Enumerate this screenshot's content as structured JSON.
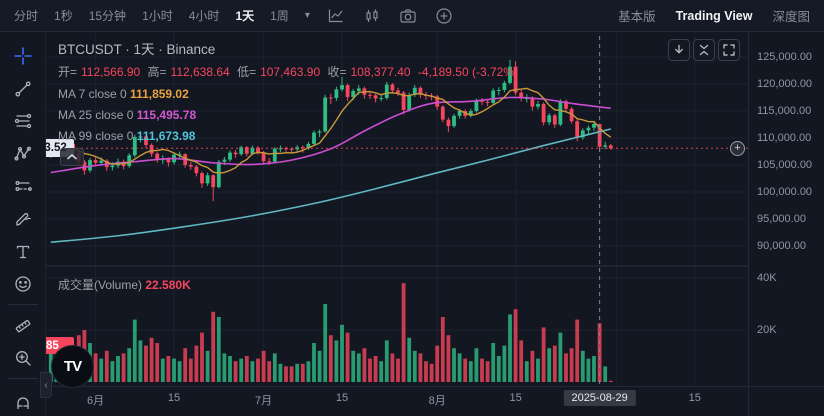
{
  "topbar": {
    "timeframes": [
      "分时",
      "1秒",
      "15分钟",
      "1小时",
      "4小时",
      "1天",
      "1周"
    ],
    "selected_timeframe": "1天",
    "icons": [
      "timeframe-dropdown-caret",
      "chart-style-icon",
      "candles-compare-icon",
      "camera-icon",
      "add-circle-icon"
    ],
    "right_tabs": [
      "基本版",
      "Trading View",
      "深度图"
    ],
    "active_right_tab": "Trading View"
  },
  "toolbar": {
    "tools": [
      "crosshair",
      "trend-line",
      "fib-retracement",
      "xabcd-pattern",
      "forecast",
      "brush",
      "text",
      "emoji",
      "ruler",
      "zoom-in",
      "magnet"
    ],
    "active_tool": "crosshair"
  },
  "legend": {
    "title": "BTCUSDT · 1天 · Binance",
    "ohlc": {
      "o_label": "开=",
      "o": "112,566.90",
      "h_label": "高=",
      "h": "112,638.64",
      "l_label": "低=",
      "l": "107,463.90",
      "c_label": "收=",
      "c": "108,377.40",
      "change": "-4,189.50 (-3.72%)"
    },
    "ma": [
      {
        "label": "MA 7 close 0",
        "value": "111,859.02"
      },
      {
        "label": "MA 25 close 0",
        "value": "115,495.78"
      },
      {
        "label": "MA 99 close 0",
        "value": "111,673.98"
      }
    ]
  },
  "volume_pane": {
    "legend_label": "成交量(Volume)",
    "legend_value": "22.580K",
    "ticks": [
      {
        "label": "40K",
        "v": 40
      },
      {
        "label": "20K",
        "v": 20
      }
    ],
    "last_value_label": "464.285"
  },
  "price_axis": {
    "last_price_label": "108,093.52",
    "add_alert_glyph": "+"
  },
  "time_axis": {
    "crosshair_date": "2025-08-29"
  },
  "chart_buttons": [
    "download-icon",
    "collapse-panes-icon",
    "fullscreen-icon"
  ],
  "colors": {
    "up": "#2ebd85",
    "down": "#f6465d",
    "ma7": "#c89a3a",
    "ma25": "#c94fd0",
    "ma99": "#5fb8c2",
    "grid": "#1d2130",
    "crosshair": "#7a8599",
    "accent_blue": "#3d6bfc"
  },
  "chart_data": {
    "type": "candlestick_with_volume",
    "symbol": "BTCUSDT",
    "interval": "1天",
    "exchange": "Binance",
    "units": "price in thousands USD, volume in thousands",
    "start_date": "2025-05-24",
    "first_open": 107.0,
    "y_ticks": [
      125,
      120,
      115,
      110,
      105,
      100,
      95,
      90
    ],
    "y_tick_labels": [
      "125,000.00",
      "120,000.00",
      "115,000.00",
      "110,000.00",
      "105,000.00",
      "100,000.00",
      "95,000.00",
      "90,000.00"
    ],
    "last_price": 108.09352,
    "last_candle": {
      "open": 112566.9,
      "high": 112638.64,
      "low": 107463.9,
      "close": 108377.4,
      "change": -4189.5,
      "change_pct": -3.72,
      "volume": "22.580K"
    },
    "crosshair_index": 98,
    "x_labels": [
      {
        "text": "6月",
        "i": 8
      },
      {
        "text": "15",
        "i": 22
      },
      {
        "text": "7月",
        "i": 38
      },
      {
        "text": "15",
        "i": 52
      },
      {
        "text": "8月",
        "i": 69
      },
      {
        "text": "15",
        "i": 83
      },
      {
        "text": "15",
        "i": 115
      }
    ],
    "grid_indices": [
      8,
      22,
      38,
      52,
      69,
      83,
      101,
      115
    ],
    "candles_hlcv": [
      [
        107.9,
        106.3,
        107.3,
        12
      ],
      [
        108.3,
        106.9,
        107.8,
        10
      ],
      [
        109.6,
        107.4,
        109.0,
        14
      ],
      [
        109.8,
        108.2,
        108.9,
        9
      ],
      [
        109.1,
        106.7,
        107.2,
        13
      ],
      [
        107.5,
        104.9,
        105.6,
        18
      ],
      [
        105.9,
        103.2,
        104.0,
        20
      ],
      [
        106.3,
        103.6,
        105.9,
        15
      ],
      [
        106.5,
        104.8,
        105.4,
        11
      ],
      [
        106.4,
        104.9,
        105.8,
        9
      ],
      [
        106.1,
        103.9,
        104.6,
        12
      ],
      [
        105.5,
        104.0,
        104.9,
        8
      ],
      [
        106.2,
        104.4,
        105.6,
        10
      ],
      [
        106.0,
        104.2,
        104.8,
        11
      ],
      [
        107.2,
        104.5,
        106.8,
        13
      ],
      [
        110.6,
        106.4,
        110.2,
        24
      ],
      [
        110.9,
        109.2,
        110.3,
        16
      ],
      [
        110.5,
        108.1,
        108.7,
        14
      ],
      [
        109.0,
        106.5,
        107.1,
        17
      ],
      [
        107.4,
        105.4,
        105.9,
        15
      ],
      [
        106.8,
        105.2,
        106.1,
        9
      ],
      [
        106.4,
        104.7,
        105.5,
        10
      ],
      [
        107.3,
        105.1,
        106.9,
        9
      ],
      [
        107.5,
        106.2,
        107.0,
        8
      ],
      [
        107.2,
        104.5,
        105.0,
        13
      ],
      [
        105.6,
        104.1,
        104.7,
        9
      ],
      [
        105.0,
        102.9,
        103.5,
        14
      ],
      [
        103.8,
        100.8,
        101.6,
        19
      ],
      [
        103.6,
        101.1,
        103.1,
        12
      ],
      [
        103.3,
        98.3,
        100.9,
        27
      ],
      [
        105.9,
        100.7,
        105.6,
        25
      ],
      [
        106.5,
        105.0,
        106.0,
        11
      ],
      [
        107.7,
        105.6,
        107.3,
        10
      ],
      [
        107.8,
        106.3,
        107.0,
        8
      ],
      [
        108.6,
        106.7,
        108.3,
        9
      ],
      [
        108.5,
        106.6,
        107.1,
        10
      ],
      [
        108.6,
        106.8,
        108.2,
        8
      ],
      [
        108.5,
        106.9,
        107.3,
        9
      ],
      [
        107.6,
        105.2,
        105.7,
        12
      ],
      [
        106.3,
        105.0,
        105.6,
        8
      ],
      [
        108.3,
        105.3,
        108.0,
        11
      ],
      [
        108.6,
        107.4,
        108.1,
        7
      ],
      [
        108.4,
        107.2,
        108.0,
        6
      ],
      [
        108.3,
        107.1,
        107.9,
        6
      ],
      [
        108.7,
        107.4,
        108.3,
        7
      ],
      [
        108.6,
        107.3,
        108.1,
        7
      ],
      [
        109.3,
        107.8,
        108.9,
        8
      ],
      [
        111.4,
        108.6,
        111.0,
        15
      ],
      [
        111.6,
        110.2,
        111.2,
        12
      ],
      [
        118.0,
        111.0,
        117.5,
        30
      ],
      [
        118.2,
        116.3,
        117.4,
        18
      ],
      [
        119.5,
        116.9,
        119.0,
        16
      ],
      [
        121.3,
        118.6,
        119.8,
        22
      ],
      [
        120.1,
        116.8,
        117.6,
        19
      ],
      [
        119.1,
        117.0,
        118.7,
        12
      ],
      [
        119.8,
        118.0,
        119.2,
        11
      ],
      [
        119.5,
        117.3,
        118.0,
        13
      ],
      [
        118.6,
        117.2,
        117.9,
        9
      ],
      [
        118.2,
        116.6,
        117.3,
        10
      ],
      [
        118.0,
        116.8,
        117.4,
        8
      ],
      [
        120.4,
        117.1,
        119.9,
        16
      ],
      [
        120.2,
        118.3,
        118.8,
        11
      ],
      [
        119.3,
        117.8,
        118.4,
        9
      ],
      [
        118.7,
        114.4,
        115.2,
        38
      ],
      [
        118.4,
        114.9,
        118.0,
        17
      ],
      [
        119.8,
        117.6,
        119.3,
        12
      ],
      [
        119.6,
        117.4,
        118.0,
        11
      ],
      [
        118.5,
        117.1,
        117.8,
        8
      ],
      [
        118.3,
        117.0,
        117.7,
        7
      ],
      [
        118.0,
        115.2,
        115.8,
        14
      ],
      [
        116.1,
        112.9,
        113.4,
        25
      ],
      [
        113.8,
        111.1,
        112.2,
        18
      ],
      [
        114.5,
        111.9,
        114.1,
        13
      ],
      [
        115.4,
        113.6,
        115.0,
        11
      ],
      [
        115.3,
        113.6,
        114.1,
        9
      ],
      [
        115.4,
        113.8,
        115.0,
        8
      ],
      [
        117.3,
        114.7,
        116.9,
        13
      ],
      [
        117.4,
        116.1,
        116.7,
        9
      ],
      [
        117.1,
        115.9,
        116.5,
        8
      ],
      [
        119.2,
        116.3,
        118.8,
        15
      ],
      [
        119.4,
        117.9,
        118.9,
        10
      ],
      [
        120.6,
        118.5,
        120.2,
        14
      ],
      [
        124.5,
        119.9,
        123.2,
        26
      ],
      [
        124.2,
        117.9,
        118.4,
        28
      ],
      [
        118.9,
        116.8,
        117.4,
        16
      ],
      [
        118.1,
        116.6,
        117.4,
        8
      ],
      [
        117.7,
        115.1,
        115.8,
        12
      ],
      [
        116.9,
        115.3,
        116.3,
        9
      ],
      [
        116.6,
        112.3,
        112.9,
        21
      ],
      [
        114.6,
        112.4,
        114.2,
        13
      ],
      [
        114.5,
        111.9,
        112.5,
        14
      ],
      [
        117.2,
        112.2,
        116.8,
        19
      ],
      [
        117.1,
        114.9,
        115.4,
        11
      ],
      [
        115.7,
        112.7,
        113.1,
        13
      ],
      [
        113.4,
        109.4,
        110.1,
        24
      ],
      [
        111.8,
        109.7,
        111.4,
        12
      ],
      [
        112.3,
        110.7,
        111.9,
        9
      ],
      [
        113.0,
        111.3,
        112.6,
        10
      ],
      [
        112.64,
        107.46,
        108.38,
        22.58
      ],
      [
        109.3,
        107.9,
        108.64,
        6
      ],
      [
        108.9,
        107.8,
        108.09,
        0.46
      ]
    ],
    "ma25_points": [
      [
        0,
        103.6
      ],
      [
        8,
        104.9
      ],
      [
        15,
        105.6
      ],
      [
        22,
        106.2
      ],
      [
        29,
        105.4
      ],
      [
        36,
        105.1
      ],
      [
        43,
        105.9
      ],
      [
        50,
        108.0
      ],
      [
        56,
        111.3
      ],
      [
        62,
        114.3
      ],
      [
        68,
        116.4
      ],
      [
        75,
        116.8
      ],
      [
        82,
        117.5
      ],
      [
        88,
        117.2
      ],
      [
        93,
        116.4
      ],
      [
        100,
        115.5
      ]
    ],
    "ma99_points": [
      [
        0,
        90.7
      ],
      [
        12,
        91.9
      ],
      [
        24,
        93.6
      ],
      [
        36,
        95.6
      ],
      [
        48,
        98.1
      ],
      [
        58,
        100.6
      ],
      [
        68,
        103.3
      ],
      [
        78,
        105.9
      ],
      [
        88,
        108.6
      ],
      [
        95,
        110.4
      ],
      [
        100,
        111.67
      ]
    ]
  }
}
